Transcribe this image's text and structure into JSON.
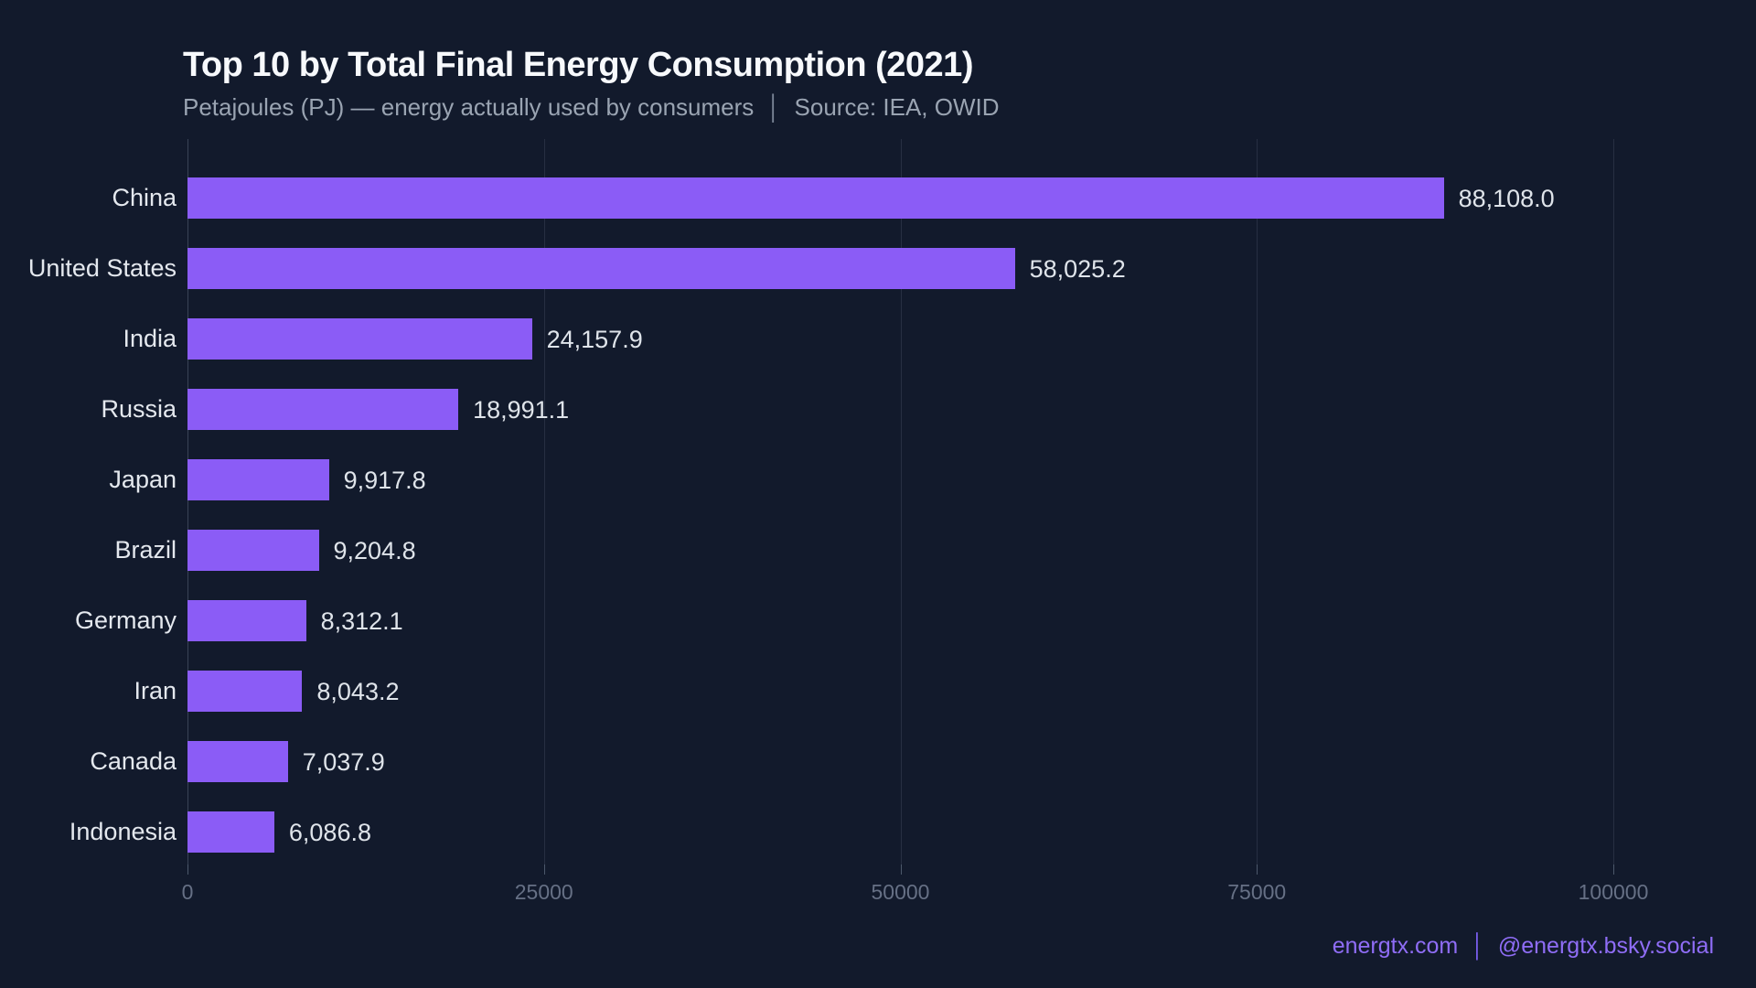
{
  "header": {
    "title": "Top 10 by Total Final Energy Consumption (2021)",
    "subtitle_unit": "Petajoules (PJ) — energy actually used by consumers",
    "subtitle_separator": "│",
    "subtitle_source": "Source: IEA, OWID"
  },
  "footer": {
    "site": "energtx.com",
    "separator": "│",
    "handle": "@energtx.bsky.social"
  },
  "colors": {
    "background": "#121a2c",
    "bar": "#8b5cf6",
    "title_text": "#f7f9fc",
    "subtitle_text": "#9aa4b2",
    "label_text": "#e4e8ee",
    "tick_text": "#667085",
    "footer_text": "#8f6df6"
  },
  "chart_data": {
    "type": "bar",
    "orientation": "horizontal",
    "title": "Top 10 by Total Final Energy Consumption (2021)",
    "subtitle": "Petajoules (PJ) — energy actually used by consumers │ Source: IEA, OWID",
    "source": "IEA, OWID",
    "unit": "Petajoules (PJ)",
    "year": "2021",
    "categories": [
      "China",
      "United States",
      "India",
      "Russia",
      "Japan",
      "Brazil",
      "Germany",
      "Iran",
      "Canada",
      "Indonesia"
    ],
    "values": [
      88108.0,
      58025.2,
      24157.9,
      18991.1,
      9917.8,
      9204.8,
      8312.1,
      8043.2,
      7037.9,
      6086.8
    ],
    "value_labels": [
      "88,108.0",
      "58,025.2",
      "24,157.9",
      "18,991.1",
      "9,917.8",
      "9,204.8",
      "8,312.1",
      "8,043.2",
      "7,037.9",
      "6,086.8"
    ],
    "x_ticks": [
      0,
      25000,
      50000,
      75000,
      100000
    ],
    "x_tick_labels": [
      "0",
      "25000",
      "50000",
      "75000",
      "100000"
    ],
    "xlim": [
      0,
      100000
    ],
    "grid": true,
    "legend": false,
    "bar_color": "#8b5cf6"
  }
}
